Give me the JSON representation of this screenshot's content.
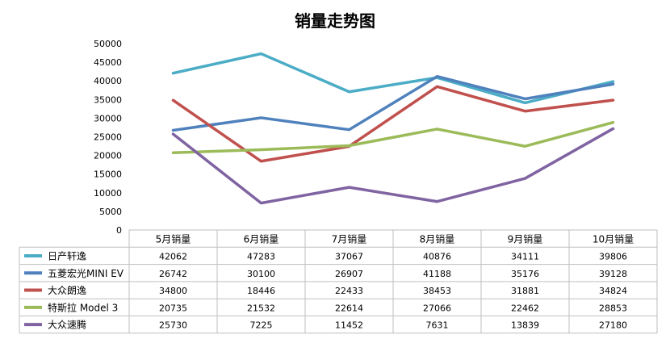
{
  "chart_data": {
    "type": "line",
    "title": "销量走势图",
    "categories": [
      "5月销量",
      "6月销量",
      "7月销量",
      "8月销量",
      "9月销量",
      "10月销量"
    ],
    "ylim": [
      0,
      50000
    ],
    "yticks": [
      0,
      5000,
      10000,
      15000,
      20000,
      25000,
      30000,
      35000,
      40000,
      45000,
      50000
    ],
    "grid": false,
    "legend": "data-table",
    "series": [
      {
        "name": "日产轩逸",
        "color": "#4BACC6",
        "values": [
          42062,
          47283,
          37067,
          40876,
          34111,
          39806
        ]
      },
      {
        "name": "五菱宏光MINI EV",
        "color": "#4F81BD",
        "values": [
          26742,
          30100,
          26907,
          41188,
          35176,
          39128
        ]
      },
      {
        "name": "大众朗逸",
        "color": "#C0504D",
        "values": [
          34800,
          18446,
          22433,
          38453,
          31881,
          34824
        ]
      },
      {
        "name": "特斯拉 Model 3",
        "color": "#9BBB59",
        "values": [
          20735,
          21532,
          22614,
          27066,
          22462,
          28853
        ]
      },
      {
        "name": "大众速腾",
        "color": "#8064A2",
        "values": [
          25730,
          7225,
          11452,
          7631,
          13839,
          27180
        ]
      }
    ]
  }
}
